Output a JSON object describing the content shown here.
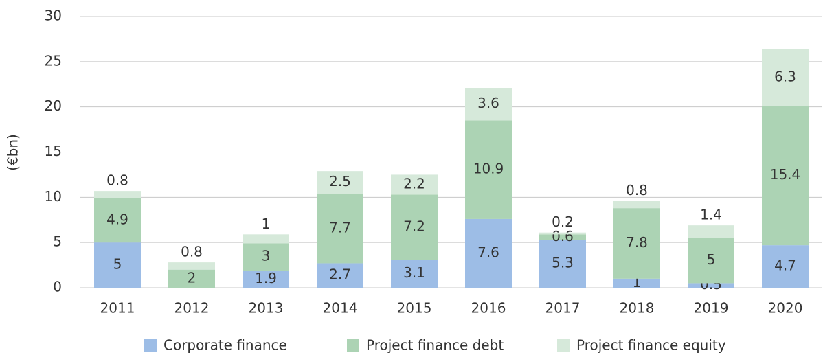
{
  "chart_data": {
    "type": "stacked_bar",
    "y_label": "(€bn)",
    "categories": [
      "2011",
      "2012",
      "2013",
      "2014",
      "2015",
      "2016",
      "2017",
      "2018",
      "2019",
      "2020"
    ],
    "series": [
      {
        "name": "Corporate finance",
        "color": "#9dbde6",
        "values": [
          5,
          null,
          1.9,
          2.7,
          3.1,
          7.6,
          5.3,
          1,
          0.5,
          4.7
        ]
      },
      {
        "name": "Project finance debt",
        "color": "#acd3b4",
        "values": [
          4.9,
          2,
          3,
          7.7,
          7.2,
          10.9,
          0.6,
          7.8,
          5,
          15.4
        ]
      },
      {
        "name": "Project finance equity",
        "color": "#d6e9da",
        "values": [
          0.8,
          0.8,
          1,
          2.5,
          2.2,
          3.6,
          0.2,
          0.8,
          1.4,
          6.3
        ]
      }
    ],
    "ylim": [
      0,
      30
    ],
    "yticks": [
      0,
      5,
      10,
      15,
      20,
      25,
      30
    ],
    "grid": true,
    "legend": "bottom"
  }
}
